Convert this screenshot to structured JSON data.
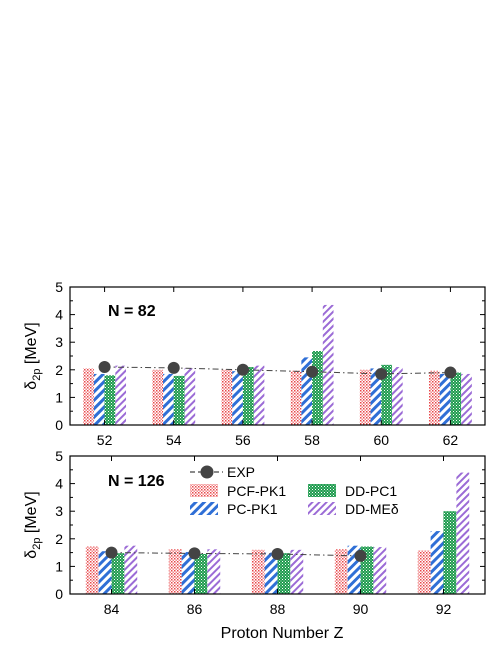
{
  "chart_data": [
    {
      "type": "bar",
      "panel_label": "N = 82",
      "categories": [
        "52",
        "54",
        "56",
        "58",
        "60",
        "62"
      ],
      "ylim": [
        0,
        5
      ],
      "yticks": [
        "0",
        "1",
        "2",
        "3",
        "4",
        "5"
      ],
      "ylabel_main": "δ",
      "ylabel_sub": "2p",
      "ylabel_unit": " [MeV]",
      "series": [
        {
          "name": "PCF-PK1",
          "values": [
            2.05,
            2.0,
            2.0,
            1.97,
            2.0,
            1.97
          ]
        },
        {
          "name": "PC-PK1",
          "values": [
            1.85,
            1.85,
            1.95,
            2.45,
            2.05,
            1.85
          ]
        },
        {
          "name": "DD-PC1",
          "values": [
            1.8,
            1.78,
            2.1,
            2.68,
            2.18,
            1.9
          ]
        },
        {
          "name": "DD-MEδ",
          "values": [
            2.15,
            2.05,
            2.15,
            4.35,
            2.1,
            1.85
          ]
        }
      ],
      "exp": {
        "name": "EXP",
        "values": [
          2.1,
          2.07,
          2.0,
          1.93,
          1.85,
          1.9
        ]
      }
    },
    {
      "type": "bar",
      "panel_label": "N = 126",
      "categories": [
        "84",
        "86",
        "88",
        "90",
        "92"
      ],
      "ylim": [
        0,
        5
      ],
      "yticks": [
        "0",
        "1",
        "2",
        "3",
        "4",
        "5"
      ],
      "ylabel_main": "δ",
      "ylabel_sub": "2p",
      "ylabel_unit": " [MeV]",
      "xlabel": "Proton Number Z",
      "series": [
        {
          "name": "PCF-PK1",
          "values": [
            1.72,
            1.62,
            1.6,
            1.62,
            1.58
          ]
        },
        {
          "name": "PC-PK1",
          "values": [
            1.55,
            1.52,
            1.5,
            1.75,
            2.28
          ]
        },
        {
          "name": "DD-PC1",
          "values": [
            1.48,
            1.45,
            1.48,
            1.72,
            3.0
          ]
        },
        {
          "name": "DD-MEδ",
          "values": [
            1.75,
            1.62,
            1.6,
            1.7,
            4.4
          ]
        }
      ],
      "exp": {
        "name": "EXP",
        "values": [
          1.5,
          1.47,
          1.45,
          1.38
        ]
      }
    }
  ],
  "legend": {
    "exp": "EXP",
    "items": [
      "PCF-PK1",
      "DD-PC1",
      "PC-PK1",
      "DD-MEδ"
    ]
  },
  "colors": {
    "PCF-PK1": "#e8474a",
    "PC-PK1": "#2f6fd6",
    "DD-PC1": "#1f9b4f",
    "DD-MEδ": "#9b6bd6",
    "EXP": "#444444"
  }
}
